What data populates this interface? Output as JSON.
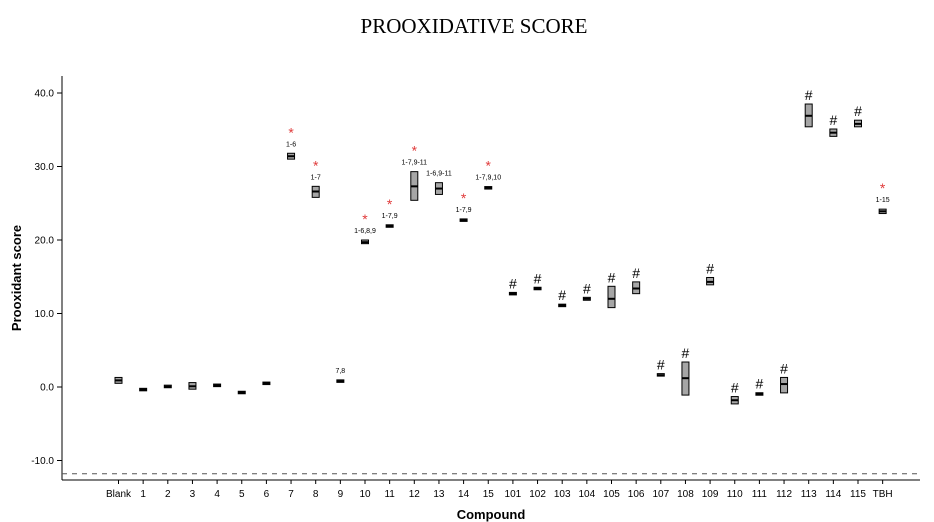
{
  "chart_data": {
    "type": "box",
    "title": "PROOXIDATIVE SCORE",
    "xlabel": "Compound",
    "ylabel": "Prooxidant score",
    "ylim": [
      -12,
      42
    ],
    "y_ticks": [
      -10,
      0,
      10,
      20,
      30,
      40
    ],
    "y_tick_labels": [
      "-10.0",
      "0.0",
      "10.0",
      "20.0",
      "30.0",
      "40.0"
    ],
    "reference_line": -11.8,
    "categories": [
      "Blank",
      "1",
      "2",
      "3",
      "4",
      "5",
      "6",
      "7",
      "8",
      "9",
      "10",
      "11",
      "12",
      "13",
      "14",
      "15",
      "101",
      "102",
      "103",
      "104",
      "105",
      "106",
      "107",
      "108",
      "109",
      "110",
      "111",
      "112",
      "113",
      "114",
      "115",
      "TBH"
    ],
    "boxes": [
      {
        "q1": 0.5,
        "median": 0.9,
        "q3": 1.3
      },
      {
        "q1": -0.5,
        "median": -0.35,
        "q3": -0.2
      },
      {
        "q1": -0.1,
        "median": 0.05,
        "q3": 0.25
      },
      {
        "q1": -0.3,
        "median": 0.1,
        "q3": 0.6
      },
      {
        "q1": 0.05,
        "median": 0.2,
        "q3": 0.4
      },
      {
        "q1": -0.9,
        "median": -0.75,
        "q3": -0.6
      },
      {
        "q1": 0.4,
        "median": 0.5,
        "q3": 0.6
      },
      {
        "q1": 31.0,
        "median": 31.4,
        "q3": 31.8
      },
      {
        "q1": 25.8,
        "median": 26.6,
        "q3": 27.3
      },
      {
        "q1": 0.65,
        "median": 0.8,
        "q3": 0.95
      },
      {
        "q1": 19.5,
        "median": 19.7,
        "q3": 20.0
      },
      {
        "q1": 21.8,
        "median": 21.9,
        "q3": 22.0
      },
      {
        "q1": 25.4,
        "median": 27.3,
        "q3": 29.3
      },
      {
        "q1": 26.2,
        "median": 27.0,
        "q3": 27.8
      },
      {
        "q1": 22.6,
        "median": 22.7,
        "q3": 22.8
      },
      {
        "q1": 27.0,
        "median": 27.1,
        "q3": 27.2
      },
      {
        "q1": 12.6,
        "median": 12.7,
        "q3": 12.8
      },
      {
        "q1": 13.3,
        "median": 13.4,
        "q3": 13.5
      },
      {
        "q1": 11.0,
        "median": 11.1,
        "q3": 11.2
      },
      {
        "q1": 11.8,
        "median": 12.0,
        "q3": 12.2
      },
      {
        "q1": 10.8,
        "median": 12.0,
        "q3": 13.7
      },
      {
        "q1": 12.7,
        "median": 13.4,
        "q3": 14.3
      },
      {
        "q1": 1.5,
        "median": 1.6,
        "q3": 1.8
      },
      {
        "q1": -1.1,
        "median": 1.2,
        "q3": 3.4
      },
      {
        "q1": 13.9,
        "median": 14.3,
        "q3": 14.9
      },
      {
        "q1": -2.3,
        "median": -1.8,
        "q3": -1.3
      },
      {
        "q1": -1.05,
        "median": -0.95,
        "q3": -0.85
      },
      {
        "q1": -0.8,
        "median": 0.4,
        "q3": 1.3
      },
      {
        "q1": 35.4,
        "median": 36.9,
        "q3": 38.5
      },
      {
        "q1": 34.1,
        "median": 34.6,
        "q3": 35.1
      },
      {
        "q1": 35.4,
        "median": 35.8,
        "q3": 36.3
      },
      {
        "q1": 23.6,
        "median": 23.9,
        "q3": 24.2
      }
    ],
    "annotations": [
      {
        "category": "7",
        "text": "1-6",
        "star": true
      },
      {
        "category": "8",
        "text": "1-7",
        "star": true
      },
      {
        "category": "9",
        "text": "7,8",
        "star": false
      },
      {
        "category": "10",
        "text": "1-6,8,9",
        "star": true
      },
      {
        "category": "11",
        "text": "1-7,9",
        "star": true
      },
      {
        "category": "12",
        "text": "1-7,9-11",
        "star": true
      },
      {
        "category": "13",
        "text": "1-6,9-11",
        "star": false
      },
      {
        "category": "14",
        "text": "1-7,9",
        "star": true
      },
      {
        "category": "15",
        "text": "1-7,9,10",
        "star": true
      },
      {
        "category": "TBH",
        "text": "1-15",
        "star": true
      }
    ],
    "star_symbol": "*",
    "hash_symbol": "#",
    "hash_categories": [
      "101",
      "102",
      "103",
      "104",
      "105",
      "106",
      "107",
      "108",
      "109",
      "110",
      "111",
      "112",
      "113",
      "114",
      "115"
    ],
    "colors": {
      "box_fill": "#a6a6a6",
      "box_stroke": "#000000",
      "star": "#e03a3a",
      "reference_line": "#555555"
    }
  }
}
